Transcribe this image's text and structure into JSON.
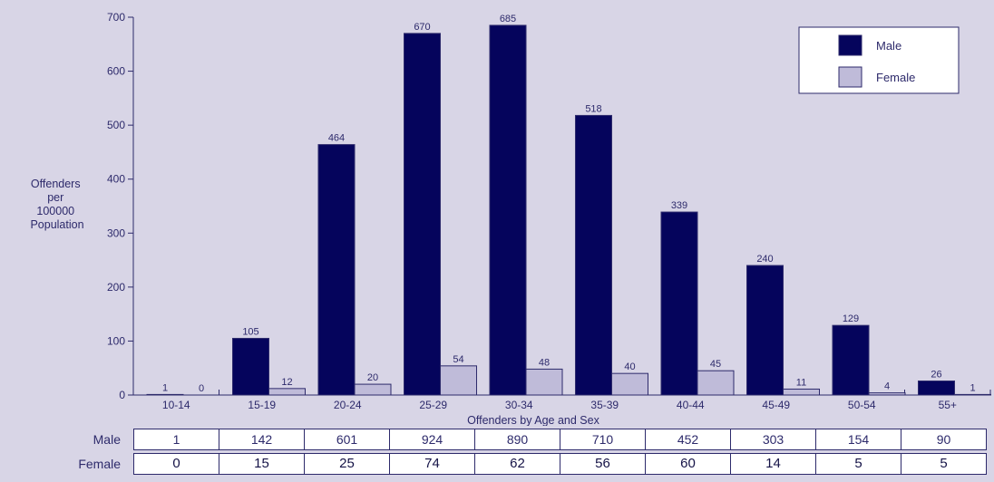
{
  "chart_data": {
    "type": "bar",
    "categories": [
      "10-14",
      "15-19",
      "20-24",
      "25-29",
      "30-34",
      "35-39",
      "40-44",
      "45-49",
      "50-54",
      "55+"
    ],
    "series": [
      {
        "name": "Male",
        "color": "#05045c",
        "values": [
          1,
          105,
          464,
          670,
          685,
          518,
          339,
          240,
          129,
          26
        ]
      },
      {
        "name": "Female",
        "color": "#bfbbd9",
        "values": [
          0,
          12,
          20,
          54,
          48,
          40,
          45,
          11,
          4,
          1
        ]
      }
    ],
    "ylabel": "Offenders per 100000 Population",
    "xlabel": "Offenders by Age and Sex",
    "ylim": [
      0,
      700
    ],
    "yticks": [
      0,
      100,
      200,
      300,
      400,
      500,
      600,
      700
    ],
    "grid": false,
    "legend_position": "top-right",
    "background_color": "#d8d5e6"
  },
  "table": {
    "rows": [
      {
        "label": "Male",
        "values": [
          "1",
          "142",
          "601",
          "924",
          "890",
          "710",
          "452",
          "303",
          "154",
          "90"
        ]
      },
      {
        "label": "Female",
        "values": [
          "0",
          "15",
          "25",
          "74",
          "62",
          "56",
          "60",
          "14",
          "5",
          "5"
        ]
      }
    ]
  }
}
